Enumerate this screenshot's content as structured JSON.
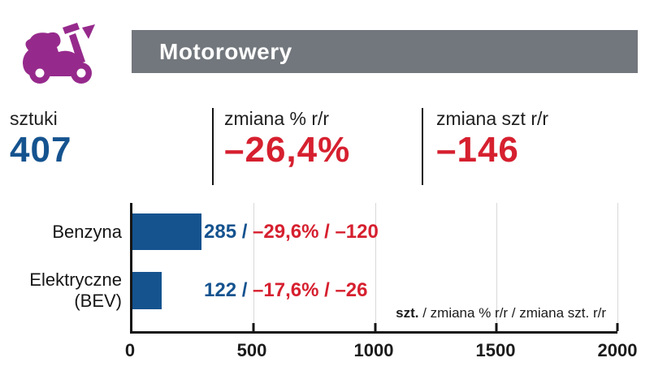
{
  "header": {
    "title": "Motorowery"
  },
  "icon": {
    "name": "scooter-icon",
    "color": "#962a8c"
  },
  "colors": {
    "header_gray": "#72777d",
    "blue": "#15538f",
    "red": "#d6202f",
    "text_dark": "#1b1b1b",
    "gridline": "#d9d9d9"
  },
  "stats": [
    {
      "label": "sztuki",
      "value": "407"
    },
    {
      "label": "zmiana % r/r",
      "value": "–26,4%"
    },
    {
      "label": "zmiana szt r/r",
      "value": "–146"
    }
  ],
  "chart_data": {
    "type": "bar",
    "orientation": "horizontal",
    "title": "Motorowery",
    "categories": [
      "Benzyna",
      "Elektryczne (BEV)"
    ],
    "values": [
      285,
      122
    ],
    "series": [
      {
        "name": "szt.",
        "values": [
          285,
          122
        ]
      },
      {
        "name": "zmiana % r/r",
        "values": [
          "–29,6%",
          "–17,6%"
        ]
      },
      {
        "name": "zmiana szt. r/r",
        "values": [
          -120,
          -26
        ]
      }
    ],
    "bar_labels": [
      {
        "units": "285 / ",
        "change": "–29,6% / –120"
      },
      {
        "units": "122 / ",
        "change": "–17,6% / –26"
      }
    ],
    "xlim": [
      0,
      2000
    ],
    "xticks": [
      0,
      500,
      1000,
      1500,
      2000
    ],
    "grid": true,
    "legend_note": {
      "bold": "szt.",
      "rest": " / zmiana % r/r / zmiana szt. r/r"
    }
  }
}
